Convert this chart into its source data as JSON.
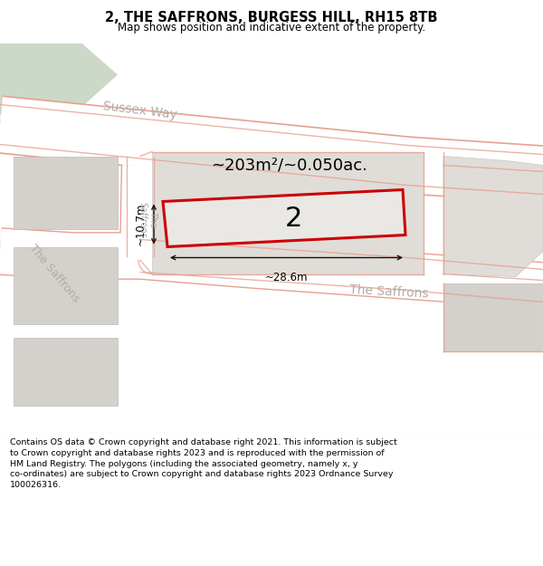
{
  "title": "2, THE SAFFRONS, BURGESS HILL, RH15 8TB",
  "subtitle": "Map shows position and indicative extent of the property.",
  "area_label": "~203m²/~0.050ac.",
  "plot_number": "2",
  "width_label": "~28.6m",
  "height_label": "~10.7m",
  "footnote_line1": "Contains OS data © Crown copyright and database right 2021. This information is subject",
  "footnote_line2": "to Crown copyright and database rights 2023 and is reproduced with the permission of",
  "footnote_line3": "HM Land Registry. The polygons (including the associated geometry, namely x, y",
  "footnote_line4": "co-ordinates) are subject to Crown copyright and database rights 2023 Ordnance Survey",
  "footnote_line5": "100026316.",
  "map_bg": "#f7f6f1",
  "white": "#ffffff",
  "road_pink": "#e8a090",
  "road_light": "#f5c8c0",
  "block_gray": "#d4d0cc",
  "block_light": "#e0ddd8",
  "green_area": "#ccd8c8",
  "plot_border": "#cc0000",
  "plot_fill": "#e8e4e0",
  "dim_color": "#111111",
  "street_color": "#b0aca8",
  "title_fontsize": 10.5,
  "subtitle_fontsize": 8.5,
  "footnote_fontsize": 6.8,
  "area_fontsize": 13,
  "street_fontsize": 10,
  "plot_label_fontsize": 20,
  "dim_fontsize": 8.5
}
